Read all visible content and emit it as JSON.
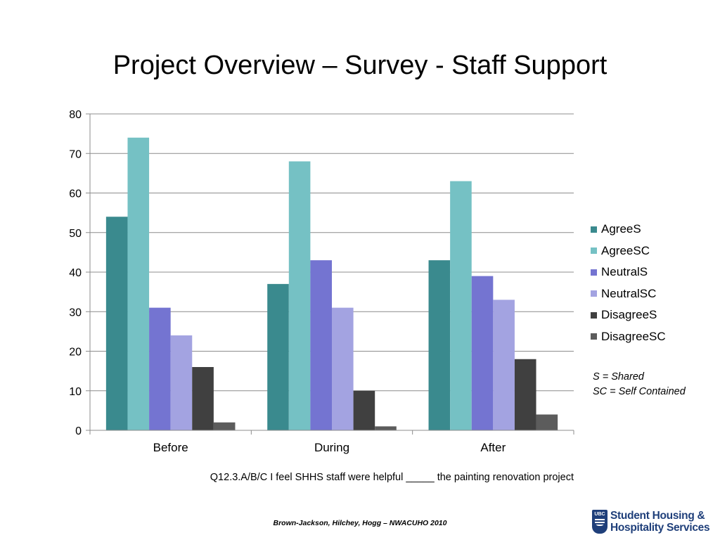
{
  "slide": {
    "title": "Project Overview – Survey - Staff Support",
    "note_lines": [
      "S = Shared",
      "SC = Self Contained"
    ],
    "caption": "Q12.3.A/B/C I feel SHHS staff were helpful _____ the painting renovation project",
    "footer": "Brown-Jackson, Hilchey, Hogg – NWACUHO 2010",
    "logo": {
      "crest_text": "UBC",
      "line1": "Student Housing &",
      "line2": "Hospitality Services"
    }
  },
  "chart_data": {
    "type": "bar",
    "categories": [
      "Before",
      "During",
      "After"
    ],
    "series": [
      {
        "name": "AgreeS",
        "values": [
          54,
          37,
          43
        ],
        "color": "#3a8a8e"
      },
      {
        "name": "AgreeSC",
        "values": [
          74,
          68,
          63
        ],
        "color": "#75c1c4"
      },
      {
        "name": "NeutralS",
        "values": [
          31,
          43,
          39
        ],
        "color": "#7474d1"
      },
      {
        "name": "NeutralSC",
        "values": [
          24,
          31,
          33
        ],
        "color": "#a3a3e1"
      },
      {
        "name": "DisagreeS",
        "values": [
          16,
          10,
          18
        ],
        "color": "#404040"
      },
      {
        "name": "DisagreeSC",
        "values": [
          2,
          1,
          4
        ],
        "color": "#5c5c5c"
      }
    ],
    "ylim": [
      0,
      80
    ],
    "yticks": [
      0,
      10,
      20,
      30,
      40,
      50,
      60,
      70,
      80
    ],
    "grid": true,
    "legend": "right"
  }
}
